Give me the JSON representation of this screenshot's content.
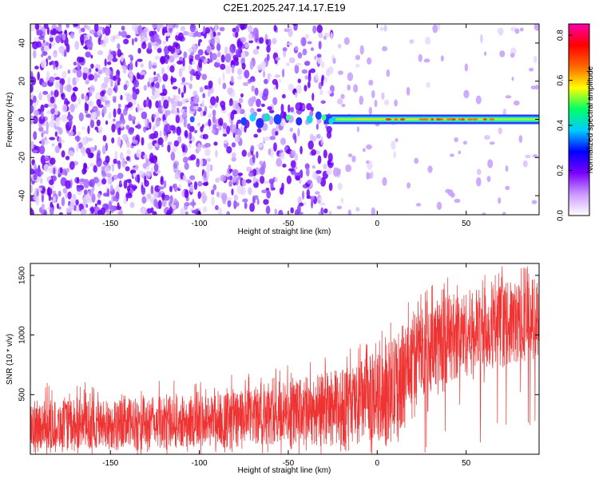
{
  "chart_data": [
    {
      "type": "heatmap",
      "title": "C2E1.2025.247.14.17.E19",
      "xlabel": "Height of straight line (km)",
      "ylabel": "Frequency (Hz)",
      "xlim": [
        -195,
        91
      ],
      "ylim": [
        -50,
        50
      ],
      "xticks": [
        -150,
        -100,
        -50,
        0,
        50
      ],
      "yticks": [
        -40,
        -20,
        0,
        20,
        40
      ],
      "colorbar": {
        "label": "Normalized spectral amplitude",
        "range": [
          0.0,
          0.85
        ],
        "ticks": [
          0.0,
          0.2,
          0.4,
          0.6,
          0.8
        ],
        "colors": [
          "#ffffff",
          "#cc99ff",
          "#7a00ff",
          "#0000ff",
          "#00ccff",
          "#00ff66",
          "#ffff00",
          "#ff6600",
          "#ff0000",
          "#ff00aa"
        ]
      },
      "features": {
        "noise_region_km": [
          -195,
          -25
        ],
        "narrowband_signal_hz": 0,
        "signal_start_km": -30,
        "signal_end_km": 91
      }
    },
    {
      "type": "line",
      "title": "",
      "xlabel": "Height of straight line (km)",
      "ylabel": "SNR (10 * v/v)",
      "xlim": [
        -195,
        91
      ],
      "ylim": [
        0,
        1600
      ],
      "xticks": [
        -150,
        -100,
        -50,
        0,
        50
      ],
      "yticks": [
        500,
        1000,
        1500
      ],
      "color": "#ef3333",
      "trend": [
        {
          "x": -195,
          "low": 50,
          "high": 450
        },
        {
          "x": -150,
          "low": 40,
          "high": 460
        },
        {
          "x": -100,
          "low": 60,
          "high": 500
        },
        {
          "x": -60,
          "low": 80,
          "high": 560
        },
        {
          "x": -40,
          "low": 90,
          "high": 650
        },
        {
          "x": -20,
          "low": 60,
          "high": 720
        },
        {
          "x": 0,
          "low": 120,
          "high": 850
        },
        {
          "x": 10,
          "low": 100,
          "high": 1000
        },
        {
          "x": 20,
          "low": 450,
          "high": 1200
        },
        {
          "x": 40,
          "low": 600,
          "high": 1350
        },
        {
          "x": 60,
          "low": 700,
          "high": 1400
        },
        {
          "x": 91,
          "low": 800,
          "high": 1500
        }
      ]
    }
  ]
}
